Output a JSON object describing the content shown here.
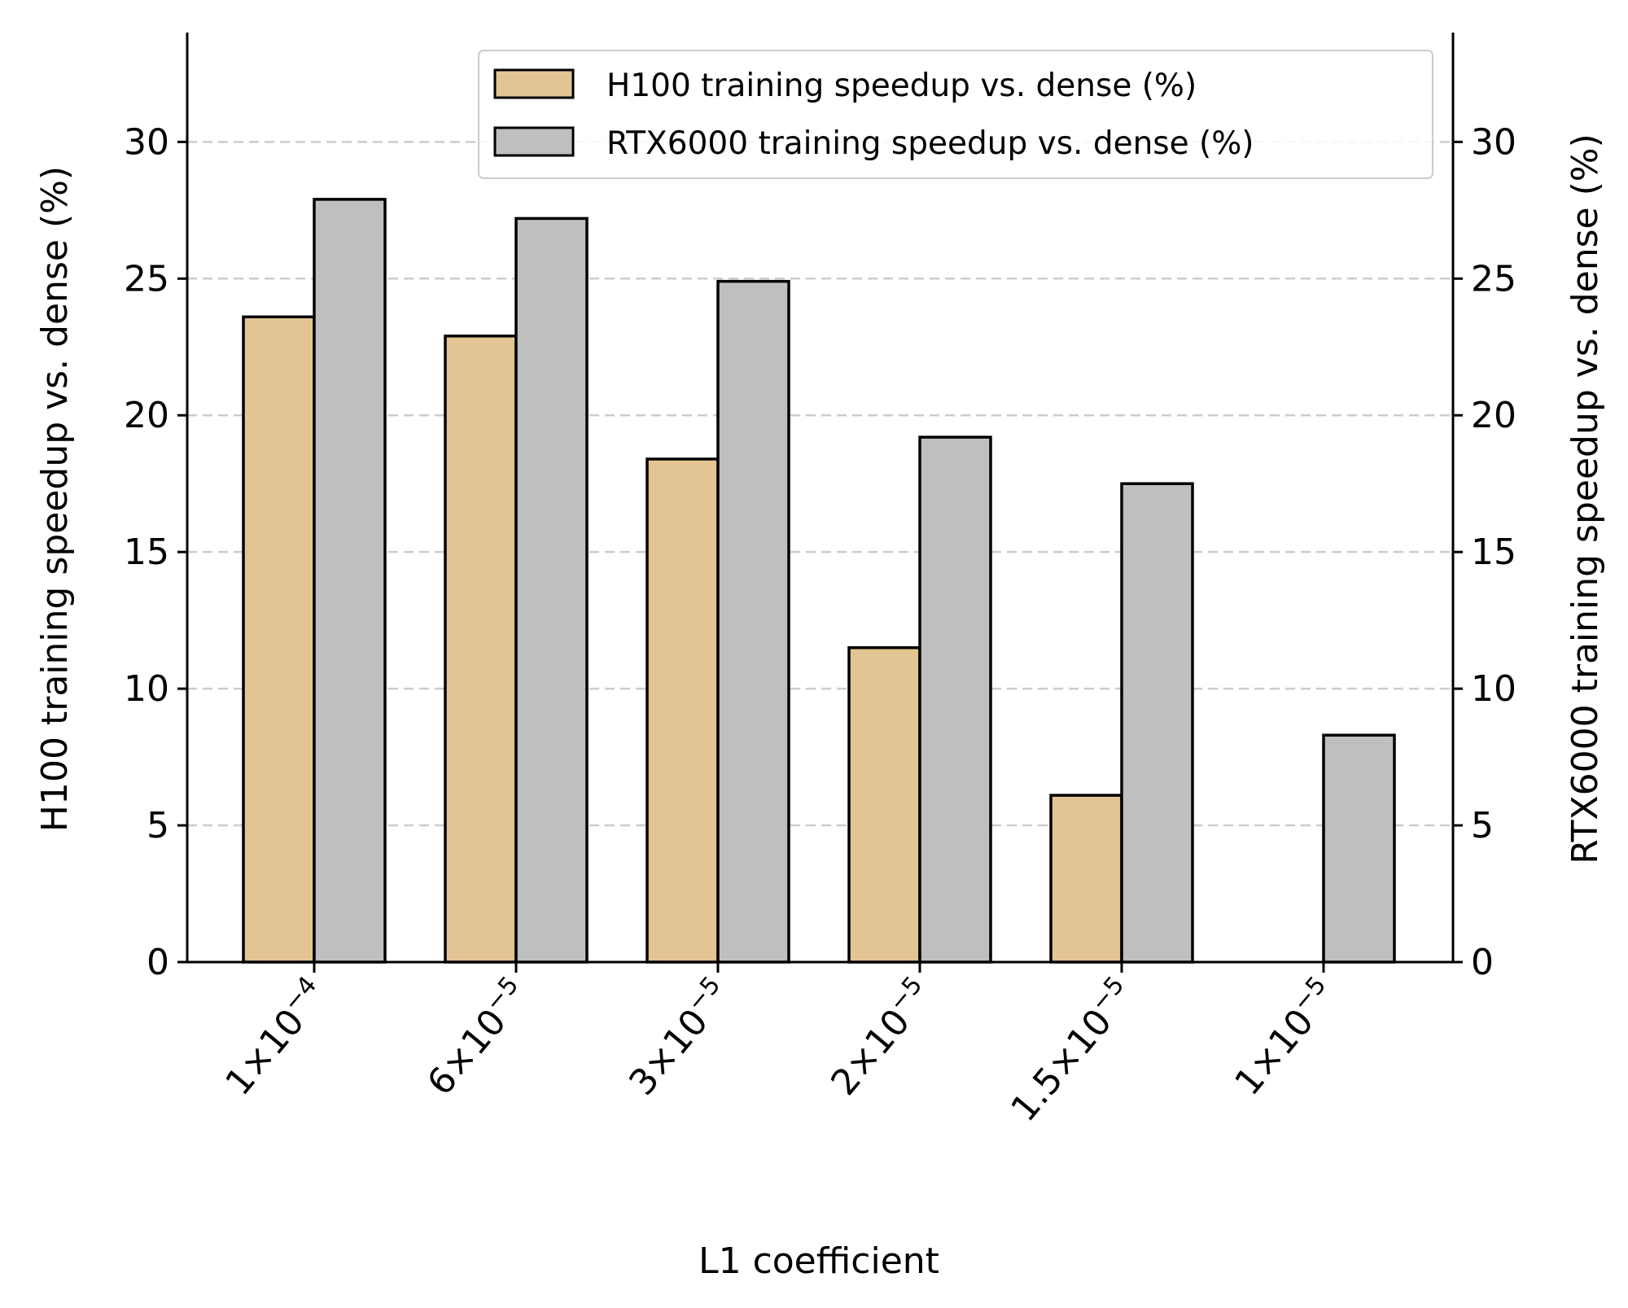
{
  "chart_data": {
    "type": "bar",
    "title": "",
    "xlabel": "L1 coefficient",
    "ylabel": "H100 training speedup vs. dense (%)",
    "ylabel_right": "RTX6000 training speedup vs. dense (%)",
    "ylim": [
      0,
      34
    ],
    "yticks": [
      0,
      5,
      10,
      15,
      20,
      25,
      30
    ],
    "grid": "horizontal dashed",
    "legend_position": "top-right",
    "categories": [
      {
        "mantissa": "1",
        "exponent": "−4"
      },
      {
        "mantissa": "6",
        "exponent": "−5"
      },
      {
        "mantissa": "3",
        "exponent": "−5"
      },
      {
        "mantissa": "2",
        "exponent": "−5"
      },
      {
        "mantissa": "1.5",
        "exponent": "−5"
      },
      {
        "mantissa": "1",
        "exponent": "−5"
      }
    ],
    "times_sign": "×",
    "base": "10",
    "series": [
      {
        "name": "H100 training speedup vs. dense (%)",
        "color": "#e3c594",
        "values": [
          23.6,
          22.9,
          18.4,
          11.5,
          6.1,
          0.0
        ]
      },
      {
        "name": "RTX6000 training speedup vs. dense (%)",
        "color": "#bfbfbf",
        "values": [
          27.9,
          27.2,
          24.9,
          19.2,
          17.5,
          8.3
        ]
      }
    ]
  }
}
